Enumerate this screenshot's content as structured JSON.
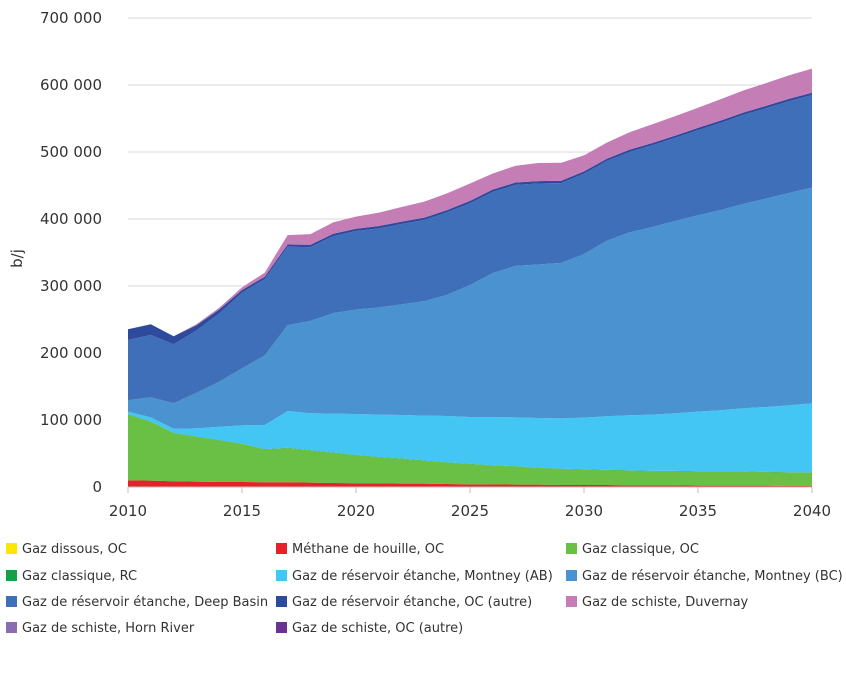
{
  "chart_data": {
    "type": "area",
    "stacked": true,
    "title": "",
    "xlabel": "",
    "ylabel": "b/j",
    "ylim": [
      0,
      700000
    ],
    "yticks": [
      0,
      100000,
      200000,
      300000,
      400000,
      500000,
      600000,
      700000
    ],
    "ytick_labels": [
      "0",
      "100 000",
      "200 000",
      "300 000",
      "400 000",
      "500 000",
      "600 000",
      "700 000"
    ],
    "xlim": [
      2010,
      2040
    ],
    "xticks": [
      2010,
      2015,
      2020,
      2025,
      2030,
      2035,
      2040
    ],
    "xtick_labels": [
      "2010",
      "2015",
      "2020",
      "2025",
      "2030",
      "2035",
      "2040"
    ],
    "grid": true,
    "legend_position": "bottom",
    "x": [
      2010,
      2011,
      2012,
      2013,
      2014,
      2015,
      2016,
      2017,
      2018,
      2019,
      2020,
      2021,
      2022,
      2023,
      2024,
      2025,
      2026,
      2027,
      2028,
      2029,
      2030,
      2031,
      2032,
      2033,
      2034,
      2035,
      2036,
      2037,
      2038,
      2039,
      2040
    ],
    "series": [
      {
        "name": "Gaz dissous, OC",
        "color": "#ffe600",
        "values": [
          500,
          500,
          500,
          500,
          500,
          500,
          500,
          500,
          500,
          500,
          500,
          500,
          500,
          500,
          500,
          500,
          500,
          500,
          500,
          500,
          500,
          500,
          500,
          500,
          500,
          500,
          500,
          500,
          500,
          500,
          500
        ]
      },
      {
        "name": "Méthane de houille, OC",
        "color": "#e8202a",
        "values": [
          9500,
          9000,
          8000,
          7500,
          7000,
          7000,
          6500,
          6500,
          6000,
          5500,
          5000,
          5000,
          4500,
          4500,
          4000,
          3500,
          3500,
          3000,
          3000,
          2500,
          2500,
          2500,
          2000,
          2000,
          2000,
          1500,
          1500,
          1500,
          1500,
          1000,
          1000
        ]
      },
      {
        "name": "Gaz classique, OC",
        "color": "#6abf45",
        "values": [
          98000,
          88000,
          72000,
          67000,
          62000,
          57000,
          49000,
          51000,
          48000,
          45000,
          42000,
          39000,
          37000,
          34000,
          32000,
          30000,
          28000,
          27000,
          25000,
          24000,
          23000,
          22000,
          22000,
          21000,
          21000,
          21000,
          21000,
          21000,
          20000,
          20000,
          20000
        ]
      },
      {
        "name": "Gaz classique, RC",
        "color": "#14a049",
        "values": [
          500,
          500,
          500,
          500,
          500,
          500,
          500,
          500,
          500,
          500,
          500,
          500,
          500,
          500,
          500,
          500,
          500,
          500,
          500,
          500,
          500,
          500,
          500,
          500,
          500,
          500,
          500,
          500,
          500,
          500,
          500
        ]
      },
      {
        "name": "Gaz de réservoir étanche, Montney (AB)",
        "color": "#44c6f4",
        "values": [
          4000,
          6000,
          6000,
          12000,
          20000,
          27000,
          36000,
          55000,
          55000,
          58000,
          61000,
          63000,
          65000,
          67000,
          69000,
          70000,
          72000,
          73000,
          74000,
          75000,
          77000,
          80000,
          82000,
          84000,
          86000,
          89000,
          91000,
          94000,
          97000,
          100000,
          103000
        ]
      },
      {
        "name": "Gaz de réservoir étanche, Montney (BC)",
        "color": "#4a92d0",
        "values": [
          17000,
          30000,
          38000,
          53000,
          67000,
          85000,
          104000,
          128000,
          138000,
          150000,
          156000,
          160000,
          165000,
          171000,
          181000,
          197000,
          215000,
          226000,
          229000,
          232000,
          244000,
          262000,
          273000,
          280000,
          287000,
          293000,
          299000,
          305000,
          311000,
          317000,
          322000
        ]
      },
      {
        "name": "Gaz de réservoir étanche, Deep Basin",
        "color": "#3e6fb8",
        "values": [
          90000,
          93000,
          88000,
          93000,
          102000,
          113000,
          114000,
          117000,
          110000,
          115000,
          117000,
          118000,
          120000,
          121000,
          123000,
          122000,
          121000,
          121000,
          121000,
          119000,
          120000,
          119000,
          120000,
          122000,
          124000,
          127000,
          130000,
          133000,
          135000,
          137000,
          138000
        ]
      },
      {
        "name": "Gaz de réservoir étanche, OC (autre)",
        "color": "#2e4a9c",
        "values": [
          16000,
          16000,
          12000,
          8000,
          6000,
          4000,
          3500,
          3500,
          3500,
          3500,
          3500,
          3500,
          3500,
          3500,
          3500,
          3500,
          3500,
          3500,
          3500,
          3500,
          3500,
          3500,
          3500,
          3500,
          3500,
          3500,
          3500,
          3500,
          3500,
          3500,
          3500
        ]
      },
      {
        "name": "Gaz de schiste, Duvernay",
        "color": "#c57db6",
        "values": [
          0,
          0,
          0,
          1500,
          2500,
          4000,
          6000,
          14000,
          16000,
          17000,
          18000,
          20000,
          22000,
          24000,
          25000,
          26000,
          24000,
          25000,
          27000,
          27000,
          24000,
          24000,
          26000,
          28000,
          29000,
          30000,
          32000,
          33000,
          34000,
          35000,
          36000
        ]
      },
      {
        "name": "Gaz de schiste, Horn River",
        "color": "#8a6cb0",
        "values": [
          0,
          0,
          0,
          0,
          0,
          0,
          0,
          0,
          0,
          0,
          0,
          0,
          0,
          0,
          0,
          0,
          0,
          0,
          0,
          0,
          0,
          0,
          0,
          0,
          0,
          0,
          0,
          0,
          0,
          0,
          0
        ]
      },
      {
        "name": "Gaz de schiste, OC (autre)",
        "color": "#6a3393",
        "values": [
          0,
          0,
          0,
          0,
          0,
          0,
          0,
          0,
          0,
          0,
          0,
          0,
          0,
          0,
          0,
          0,
          0,
          0,
          0,
          0,
          0,
          0,
          0,
          0,
          0,
          0,
          0,
          0,
          0,
          0,
          0
        ]
      }
    ]
  }
}
